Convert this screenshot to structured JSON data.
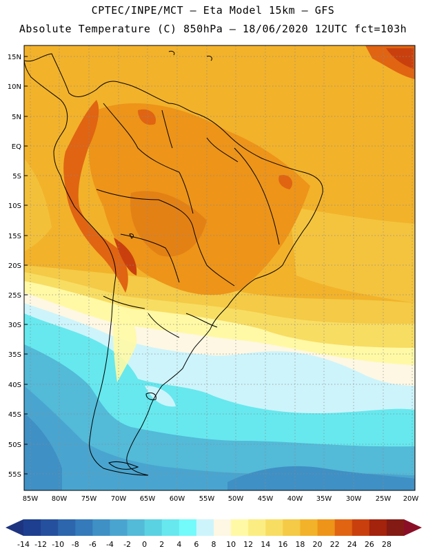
{
  "header": {
    "line1": "CPTEC/INPE/MCT –  Eta Model 15km – GFS",
    "line2": "Absolute Temperature (C) 850hPa – 18/06/2020 12UTC fct=103h"
  },
  "axes": {
    "lat_labels": [
      "15N",
      "10N",
      "5N",
      "EQ",
      "5S",
      "10S",
      "15S",
      "20S",
      "25S",
      "30S",
      "35S",
      "40S",
      "45S",
      "50S",
      "55S"
    ],
    "lon_labels": [
      "85W",
      "80W",
      "75W",
      "70W",
      "65W",
      "60W",
      "55W",
      "50W",
      "45W",
      "40W",
      "35W",
      "30W",
      "25W",
      "20W"
    ]
  },
  "colorbar": {
    "labels": [
      "-14",
      "-12",
      "-10",
      "-8",
      "-6",
      "-4",
      "-2",
      "0",
      "2",
      "4",
      "6",
      "8",
      "10",
      "12",
      "14",
      "16",
      "18",
      "20",
      "22",
      "24",
      "26",
      "28"
    ],
    "colors": [
      "#1e3f8f",
      "#25509d",
      "#2d66ac",
      "#357aba",
      "#3f90c5",
      "#49a5cf",
      "#53bad8",
      "#5bd2e2",
      "#66e8ee",
      "#73fafa",
      "#cdf4fb",
      "#fdf7e3",
      "#fff9a5",
      "#fbed82",
      "#f8dd63",
      "#f4ca46",
      "#f2b22a",
      "#ed9419",
      "#e06412",
      "#c9400e",
      "#a3230c",
      "#831a14"
    ],
    "low_color": "#1d3480",
    "high_color": "#8a0f26"
  }
}
